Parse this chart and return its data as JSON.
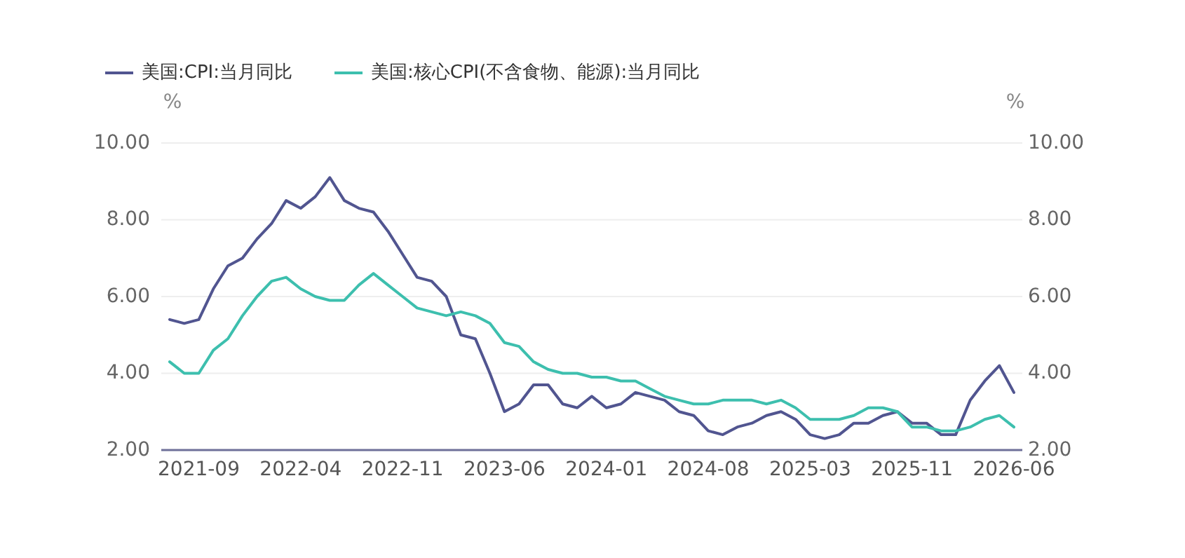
{
  "chart_data": {
    "type": "line",
    "categories": [
      null,
      null,
      "2021-09",
      null,
      null,
      null,
      null,
      null,
      null,
      "2022-04",
      null,
      null,
      null,
      null,
      null,
      null,
      "2022-11",
      null,
      null,
      null,
      null,
      null,
      null,
      "2023-06",
      null,
      null,
      null,
      null,
      null,
      null,
      "2024-01",
      null,
      null,
      null,
      null,
      null,
      null,
      "2024-08",
      null,
      null,
      null,
      null,
      null,
      null,
      "2025-03",
      null,
      null,
      null,
      null,
      null,
      null,
      "2025-11",
      null,
      null,
      null,
      null,
      null,
      null,
      "2026-06"
    ],
    "series": [
      {
        "name": "美国:CPI:当月同比",
        "color": "#515590",
        "values": [
          5.4,
          5.3,
          5.4,
          6.2,
          6.8,
          7.0,
          7.5,
          7.9,
          8.5,
          8.3,
          8.6,
          9.1,
          8.5,
          8.3,
          8.2,
          7.7,
          7.1,
          6.5,
          6.4,
          6.0,
          5.0,
          4.9,
          4.0,
          3.0,
          3.2,
          3.7,
          3.7,
          3.2,
          3.1,
          3.4,
          3.1,
          3.2,
          3.5,
          3.4,
          3.3,
          3.0,
          2.9,
          2.5,
          2.4,
          2.6,
          2.7,
          2.9,
          3.0,
          2.8,
          2.4,
          2.3,
          2.4,
          2.7,
          2.7,
          2.9,
          3.0,
          2.7,
          2.7,
          2.4,
          2.4,
          3.3,
          3.8,
          4.2,
          3.5
        ]
      },
      {
        "name": "美国:核心CPI(不含食物、能源):当月同比",
        "color": "#3dbfae",
        "values": [
          4.3,
          4.0,
          4.0,
          4.6,
          4.9,
          5.5,
          6.0,
          6.4,
          6.5,
          6.2,
          6.0,
          5.9,
          5.9,
          6.3,
          6.6,
          6.3,
          6.0,
          5.7,
          5.6,
          5.5,
          5.6,
          5.5,
          5.3,
          4.8,
          4.7,
          4.3,
          4.1,
          4.0,
          4.0,
          3.9,
          3.9,
          3.8,
          3.8,
          3.6,
          3.4,
          3.3,
          3.2,
          3.2,
          3.3,
          3.3,
          3.3,
          3.2,
          3.3,
          3.1,
          2.8,
          2.8,
          2.8,
          2.9,
          3.1,
          3.1,
          3.0,
          2.6,
          2.6,
          2.5,
          2.5,
          2.6,
          2.8,
          2.9,
          2.6
        ]
      }
    ],
    "ylabel": "%",
    "y2label": "%",
    "ylim": [
      2,
      10
    ],
    "yticks": [
      {
        "value": 2,
        "label": "2.00"
      },
      {
        "value": 4,
        "label": "4.00"
      },
      {
        "value": 6,
        "label": "6.00"
      },
      {
        "value": 8,
        "label": "8.00"
      },
      {
        "value": 10,
        "label": "10.00"
      }
    ],
    "y2lim": [
      2,
      10
    ],
    "y2ticks": [
      {
        "value": 2,
        "label": "2.00"
      },
      {
        "value": 4,
        "label": "4.00"
      },
      {
        "value": 6,
        "label": "6.00"
      },
      {
        "value": 8,
        "label": "8.00"
      },
      {
        "value": 10,
        "label": "10.00"
      }
    ],
    "grid": "y",
    "legend": "top"
  }
}
